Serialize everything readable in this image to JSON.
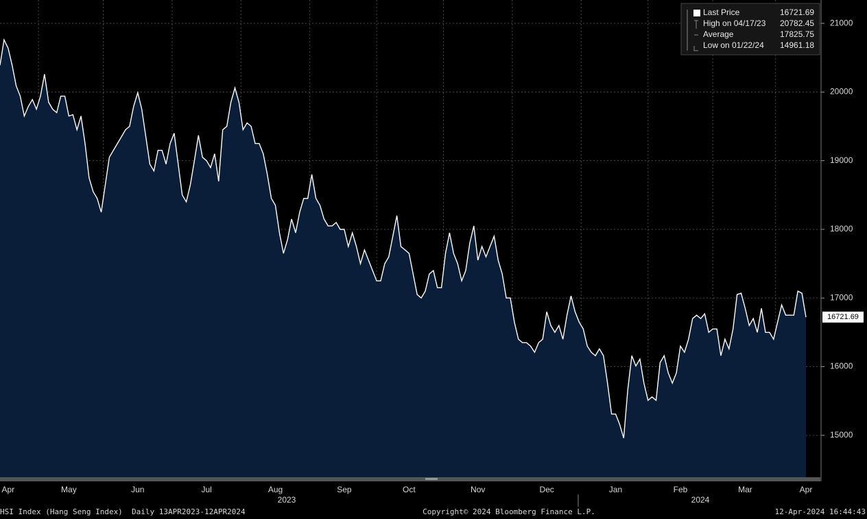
{
  "chart_data": {
    "type": "area",
    "series": [
      {
        "name": "Last Price",
        "color": "#ffffff",
        "fill": "#0a1e3a",
        "values": [
          20390,
          20760,
          20640,
          20390,
          20090,
          19940,
          19650,
          19790,
          19890,
          19750,
          19940,
          20260,
          19850,
          19750,
          19700,
          19940,
          19940,
          19650,
          19670,
          19450,
          19650,
          19250,
          18750,
          18550,
          18450,
          18250,
          18650,
          19050,
          19150,
          19250,
          19350,
          19450,
          19500,
          19790,
          19990,
          19750,
          19350,
          18950,
          18850,
          19150,
          19150,
          18950,
          19250,
          19400,
          18950,
          18500,
          18400,
          18650,
          19000,
          19370,
          19050,
          19000,
          18900,
          19100,
          18700,
          19450,
          19500,
          19850,
          20060,
          19850,
          19450,
          19550,
          19500,
          19250,
          19250,
          19100,
          18800,
          18450,
          18350,
          17950,
          17650,
          17850,
          18150,
          17950,
          18250,
          18450,
          18450,
          18800,
          18450,
          18350,
          18150,
          18050,
          18050,
          18100,
          18000,
          18000,
          17750,
          17950,
          17750,
          17500,
          17700,
          17550,
          17400,
          17250,
          17250,
          17500,
          17600,
          17900,
          18200,
          17750,
          17700,
          17650,
          17350,
          17050,
          17000,
          17100,
          17350,
          17400,
          17150,
          17150,
          17650,
          17950,
          17650,
          17500,
          17250,
          17400,
          17800,
          18050,
          17550,
          17750,
          17600,
          17750,
          17900,
          17550,
          17350,
          17000,
          17000,
          16650,
          16400,
          16350,
          16350,
          16300,
          16210,
          16350,
          16400,
          16800,
          16600,
          16500,
          16600,
          16400,
          16750,
          17030,
          16800,
          16650,
          16550,
          16300,
          16210,
          16160,
          16260,
          16160,
          15760,
          15310,
          15310,
          15160,
          14960,
          15660,
          16160,
          16010,
          16110,
          15760,
          15510,
          15560,
          15510,
          16060,
          16160,
          15910,
          15760,
          15910,
          16300,
          16210,
          16400,
          16700,
          16750,
          16700,
          16770,
          16500,
          16550,
          16550,
          16160,
          16400,
          16260,
          16550,
          17050,
          17070,
          16850,
          16600,
          16700,
          16500,
          16850,
          16500,
          16500,
          16400,
          16650,
          16900,
          16750,
          16750,
          16750,
          17100,
          17070,
          16721.69
        ]
      }
    ],
    "categories": [
      null,
      null,
      "Apr",
      null,
      null,
      null,
      null,
      null,
      null,
      null,
      null,
      null,
      null,
      null,
      null,
      null,
      null,
      "May",
      null,
      null,
      null,
      null,
      null,
      null,
      null,
      null,
      null,
      null,
      null,
      null,
      null,
      null,
      null,
      null,
      "Jun",
      null,
      null,
      null,
      null,
      null,
      null,
      null,
      null,
      null,
      null,
      null,
      null,
      null,
      null,
      null,
      null,
      "Jul",
      null,
      null,
      null,
      null,
      null,
      null,
      null,
      null,
      null,
      null,
      null,
      null,
      null,
      null,
      null,
      null,
      "Aug",
      null,
      null,
      null,
      null,
      null,
      null,
      null,
      null,
      null,
      null,
      null,
      null,
      null,
      null,
      null,
      null,
      "Sep",
      null,
      null,
      null,
      null,
      null,
      null,
      null,
      null,
      null,
      null,
      null,
      null,
      null,
      null,
      null,
      "Oct",
      null,
      null,
      null,
      null,
      null,
      null,
      null,
      null,
      null,
      null,
      null,
      null,
      null,
      null,
      null,
      null,
      "Nov",
      null,
      null,
      null,
      null,
      null,
      null,
      null,
      null,
      null,
      null,
      null,
      null,
      null,
      null,
      null,
      null,
      "Dec",
      null,
      null,
      null,
      null,
      null,
      null,
      null,
      null,
      null,
      null,
      null,
      null,
      null,
      null,
      null,
      null,
      "Jan",
      null,
      null,
      null,
      null,
      null,
      null,
      null,
      null,
      null,
      null,
      null,
      null,
      null,
      null,
      null,
      "Feb",
      null,
      null,
      null,
      null,
      null,
      null,
      null,
      null,
      null,
      null,
      null,
      null,
      null,
      null,
      null,
      "Mar",
      null,
      null,
      null,
      null,
      null,
      null,
      null,
      null,
      null,
      null,
      null,
      null,
      null,
      null,
      "Apr"
    ],
    "year_labels": [
      "2023",
      "2024"
    ],
    "ylim": [
      14390,
      21340
    ],
    "yticks": [
      15000,
      16000,
      17000,
      18000,
      19000,
      20000,
      21000
    ],
    "grid": true,
    "stats": [
      {
        "label": "High on 04/17/23",
        "value": 20782.45
      },
      {
        "label": "Average",
        "value": 17825.75
      },
      {
        "label": "Low on 01/22/24",
        "value": 14961.18
      }
    ],
    "footer": {
      "left": "HSI Index (Hang Seng Index)  Daily 13APR2023-12APR2024",
      "center": "Copyright© 2024 Bloomberg Finance L.P.",
      "right": "12-Apr-2024 16:44:43"
    }
  }
}
